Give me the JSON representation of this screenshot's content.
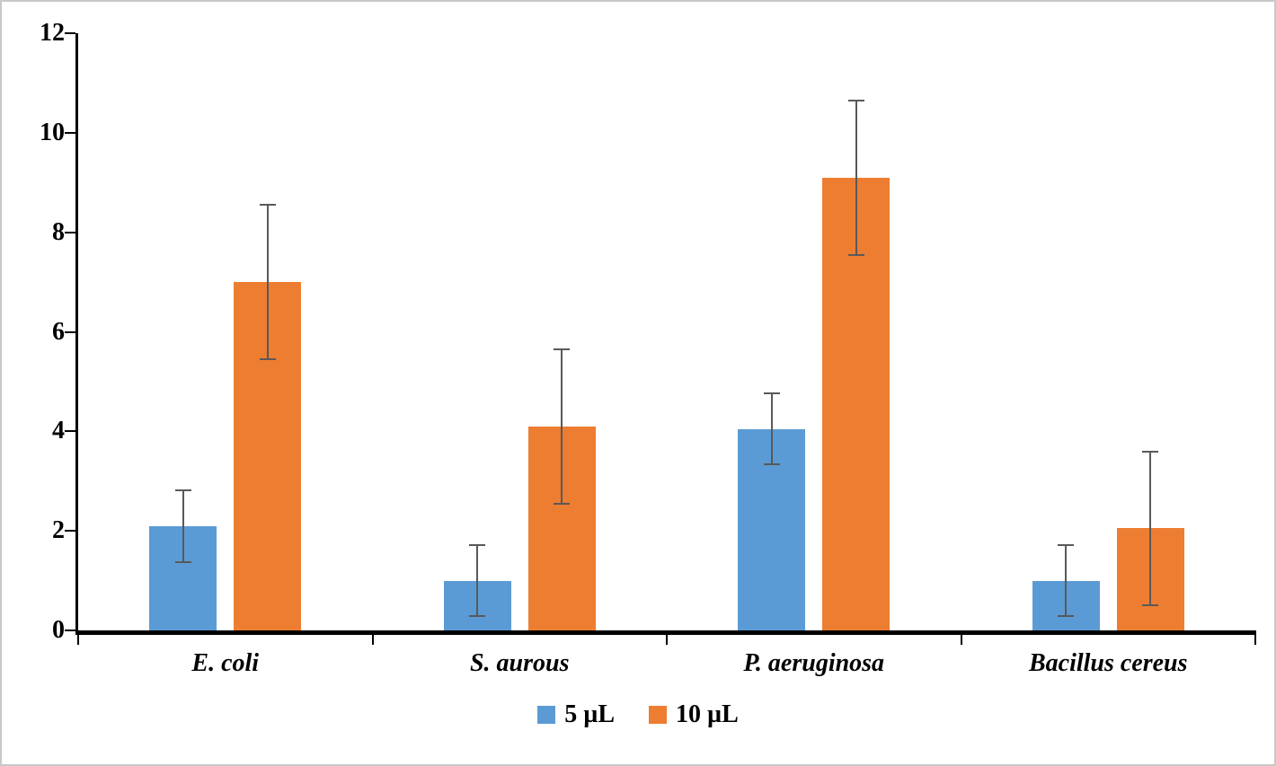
{
  "chart_data": {
    "type": "bar",
    "title": "",
    "xlabel": "",
    "ylabel": "",
    "categories": [
      "E. coli",
      "S. aurous",
      "P. aeruginosa",
      "Bacillus cereus"
    ],
    "series": [
      {
        "name": "5 µL",
        "color": "#5B9BD5",
        "values": [
          2.1,
          1.0,
          4.05,
          1.0
        ],
        "errors": [
          0.72,
          0.72,
          0.72,
          0.72
        ]
      },
      {
        "name": "10 µL",
        "color": "#ED7D31",
        "values": [
          7.0,
          4.1,
          9.1,
          2.05
        ],
        "errors": [
          1.55,
          1.55,
          1.55,
          1.55
        ]
      }
    ],
    "ylim": [
      0,
      12
    ],
    "yticks": [
      0,
      2,
      4,
      6,
      8,
      10,
      12
    ],
    "grid": false,
    "legend_position": "bottom",
    "colors": {
      "axis": "#000000",
      "error_bar": "#595959",
      "figure_border": "#c8c8c8",
      "background": "#ffffff"
    }
  }
}
